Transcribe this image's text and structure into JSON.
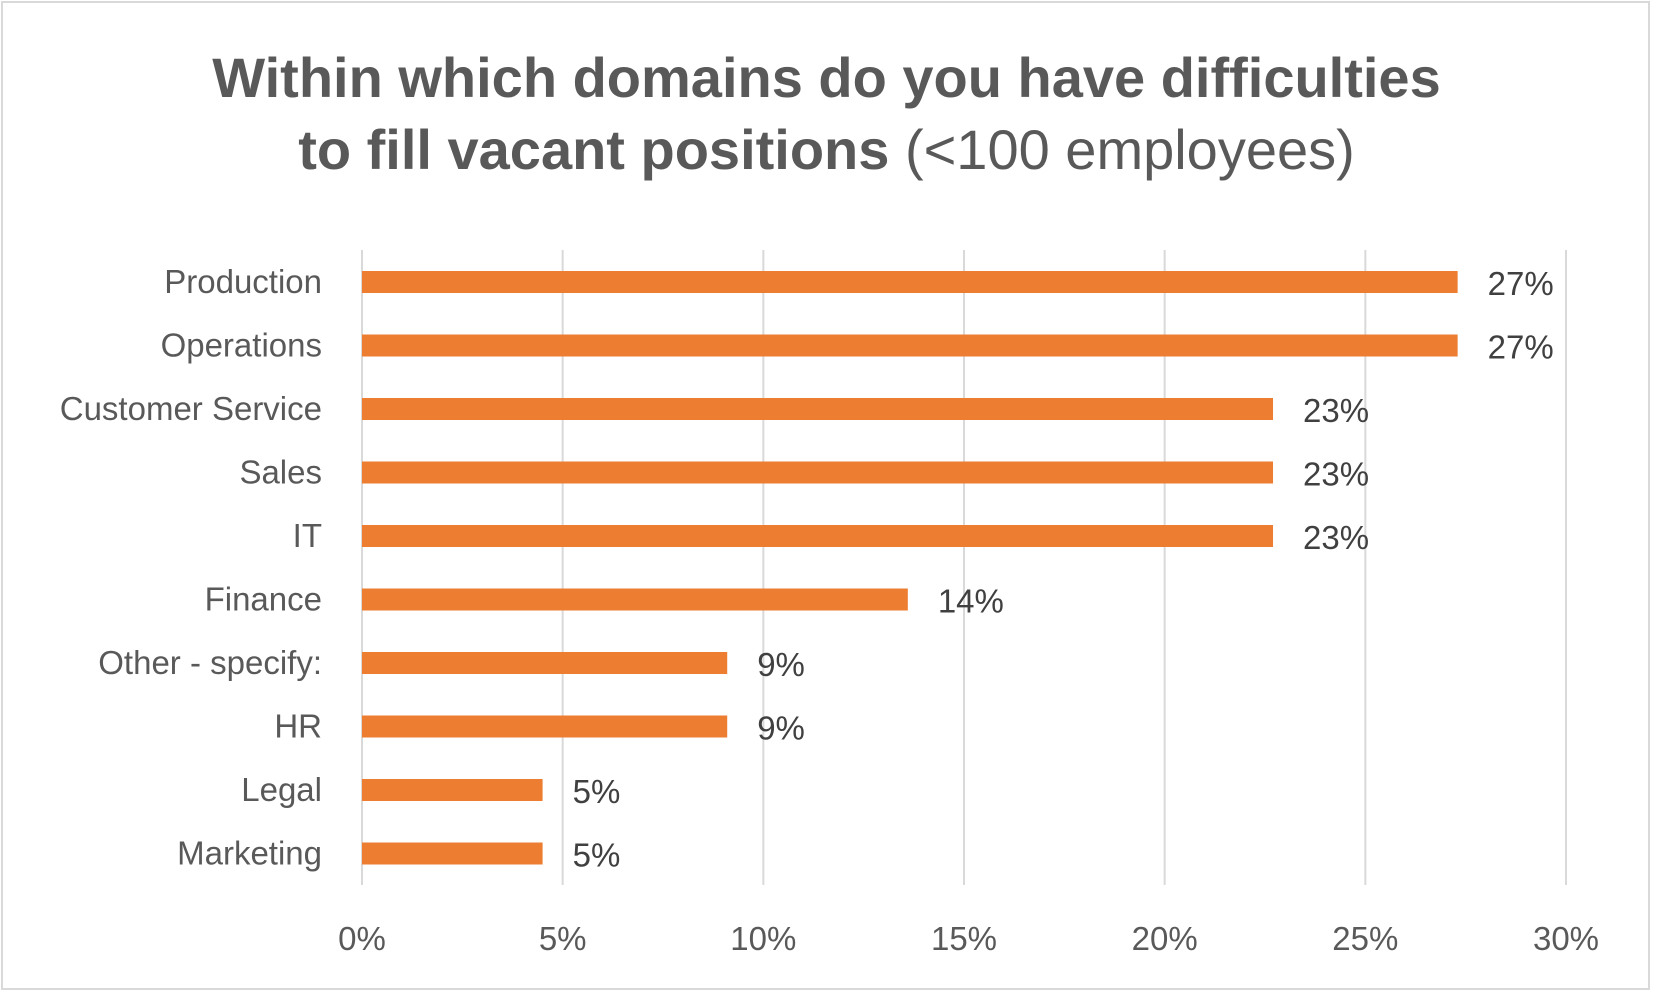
{
  "chart_data": {
    "type": "bar",
    "orientation": "horizontal",
    "title": "Within which domains do you have difficulties to fill vacant positions",
    "title_line1": "Within which domains do you have difficulties",
    "title_line2_bold": "to fill vacant positions",
    "subtitle": "(<100 employees)",
    "categories": [
      "Production",
      "Operations",
      "Customer Service",
      "Sales",
      "IT",
      "Finance",
      "Other - specify:",
      "HR",
      "Legal",
      "Marketing"
    ],
    "values": [
      27.3,
      27.3,
      22.7,
      22.7,
      22.7,
      13.6,
      9.1,
      9.1,
      4.5,
      4.5
    ],
    "data_labels": [
      "27%",
      "27%",
      "23%",
      "23%",
      "23%",
      "14%",
      "9%",
      "9%",
      "5%",
      "5%"
    ],
    "xlim": [
      0,
      30
    ],
    "xticks": [
      0,
      5,
      10,
      15,
      20,
      25,
      30
    ],
    "xtick_labels": [
      "0%",
      "5%",
      "10%",
      "15%",
      "20%",
      "25%",
      "30%"
    ],
    "xlabel": "",
    "ylabel": "",
    "grid": true,
    "legend": "none",
    "colors": {
      "bar": "#ED7D31",
      "grid": "#d9d9d9",
      "text": "#595959"
    }
  }
}
